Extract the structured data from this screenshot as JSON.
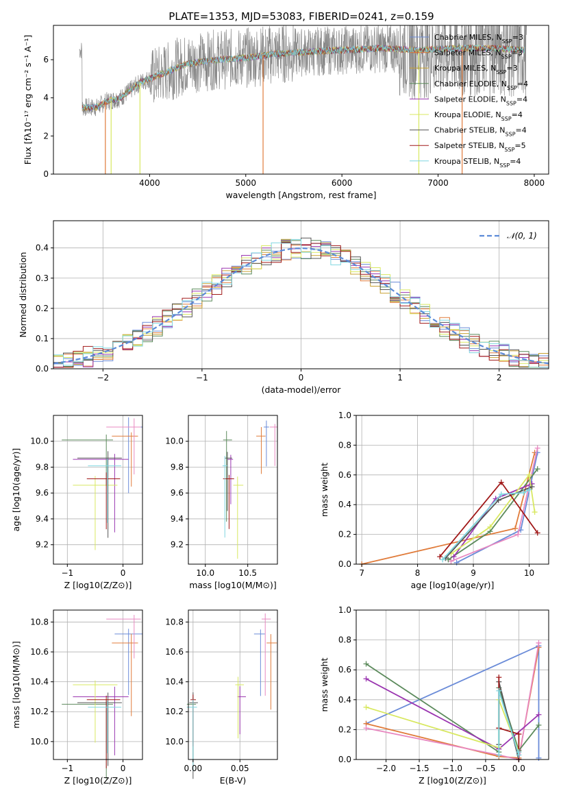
{
  "figure_title": "PLATE=1353, MJD=53083, FIBERID=0241, z=0.159",
  "colors": {
    "Chabrier MILES": "#6a8bd8",
    "Salpeter MILES": "#e07b3a",
    "Kroupa MILES": "#c8a030",
    "Chabrier ELODIE": "#5b8a5b",
    "Salpeter ELODIE": "#9a35b0",
    "Kroupa ELODIE": "#d8e860",
    "Chabrier STELIB": "#555555",
    "Salpeter STELIB": "#a01818",
    "Kroupa STELIB": "#7fd6e0",
    "pink": "#e888c0",
    "data": "#888888"
  },
  "chart_data": [
    {
      "id": "spectrum",
      "type": "line",
      "xlabel": "wavelength [Angstrom, rest frame]",
      "ylabel": "Flux [f_λ 10^-17 erg cm^-2 s^-1 A^-1]",
      "xlim": [
        3000,
        8150
      ],
      "ylim": [
        0,
        7.8
      ],
      "xticks": [
        4000,
        5000,
        6000,
        7000,
        8000
      ],
      "yticks": [
        0,
        2,
        4,
        6
      ],
      "legend": [
        "Chabrier MILES, N_SSP=3",
        "Salpeter MILES, N_SSP=3",
        "Kroupa MILES, N_SSP=3",
        "Chabrier ELODIE, N_SSP=4",
        "Salpeter ELODIE, N_SSP=4",
        "Kroupa ELODIE, N_SSP=4",
        "Chabrier STELIB, N_SSP=4",
        "Salpeter STELIB, N_SSP=5",
        "Kroupa STELIB, N_SSP=4"
      ],
      "model_continuum": [
        [
          3300,
          3.5
        ],
        [
          3450,
          3.5
        ],
        [
          3550,
          3.8
        ],
        [
          3700,
          4.0
        ],
        [
          3900,
          4.8
        ],
        [
          4100,
          5.2
        ],
        [
          4400,
          5.8
        ],
        [
          4700,
          6.0
        ],
        [
          5000,
          6.1
        ],
        [
          5300,
          6.3
        ],
        [
          5600,
          6.4
        ],
        [
          6000,
          6.5
        ],
        [
          6400,
          6.6
        ],
        [
          6800,
          6.5
        ],
        [
          7200,
          6.6
        ],
        [
          7600,
          6.6
        ],
        [
          7900,
          6.5
        ]
      ],
      "data_range": [
        3270,
        7920
      ]
    },
    {
      "id": "residuals",
      "type": "bar",
      "xlabel": "(data-model)/error",
      "ylabel": "Normed distribution",
      "xlim": [
        -2.5,
        2.5
      ],
      "ylim": [
        0,
        0.49
      ],
      "xticks": [
        -2,
        -1,
        0,
        1,
        2
      ],
      "yticks": [
        0.0,
        0.1,
        0.2,
        0.3,
        0.4
      ],
      "legend": "N(0,1)",
      "bin_width": 0.1
    },
    {
      "id": "age-Z",
      "type": "scatter",
      "xlabel": "Z [log10(Z/Z⊙)]",
      "ylabel": "age  [log10(age/yr)]",
      "xlim": [
        -1.25,
        0.35
      ],
      "ylim": [
        9.05,
        10.2
      ],
      "xticks": [
        -1,
        0
      ],
      "yticks": [
        9.2,
        9.4,
        9.6,
        9.8,
        10.0
      ]
    },
    {
      "id": "age-mass",
      "type": "scatter",
      "xlabel": "mass [log10(M/M⊙)]",
      "xlim": [
        9.8,
        10.85
      ],
      "ylim": [
        9.05,
        10.2
      ],
      "xticks": [
        10.0,
        10.5
      ],
      "yticks": [
        9.2,
        9.4,
        9.6,
        9.8,
        10.0
      ]
    },
    {
      "id": "mw-age",
      "type": "line",
      "xlabel": "age  [log10(age/yr)]",
      "ylabel": "mass weight",
      "xlim": [
        6.9,
        10.35
      ],
      "ylim": [
        0,
        1.0
      ],
      "xticks": [
        7,
        8,
        9,
        10
      ],
      "yticks": [
        0.0,
        0.2,
        0.4,
        0.6,
        0.8,
        1.0
      ]
    },
    {
      "id": "mass-Z",
      "type": "scatter",
      "xlabel": "Z [log10(Z/Z⊙)]",
      "ylabel": "mass [log10(M/M⊙)]",
      "xlim": [
        -1.25,
        0.35
      ],
      "ylim": [
        9.88,
        10.88
      ],
      "xticks": [
        -1,
        0
      ],
      "yticks": [
        10.0,
        10.2,
        10.4,
        10.6,
        10.8
      ]
    },
    {
      "id": "mass-EBV",
      "type": "scatter",
      "xlabel": "E(B-V)",
      "xlim": [
        -0.005,
        0.09
      ],
      "ylim": [
        9.88,
        10.88
      ],
      "xticks": [
        0.0,
        0.05
      ],
      "yticks": [
        10.0,
        10.2,
        10.4,
        10.6,
        10.8
      ]
    },
    {
      "id": "mw-Z",
      "type": "line",
      "xlabel": "Z [log10(Z/Z⊙)]",
      "ylabel": "mass weight",
      "xlim": [
        -2.45,
        0.45
      ],
      "ylim": [
        0,
        1.0
      ],
      "xticks": [
        -2.0,
        -1.5,
        -1.0,
        -0.5,
        0.0
      ],
      "yticks": [
        0.0,
        0.2,
        0.4,
        0.6,
        0.8,
        1.0
      ]
    }
  ]
}
